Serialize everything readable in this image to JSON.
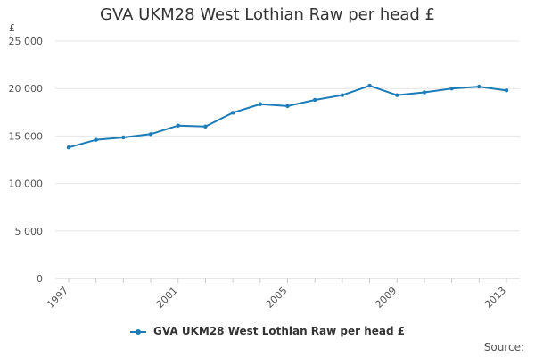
{
  "chart_data": {
    "type": "line",
    "title": "GVA UKM28 West Lothian Raw per head £",
    "ylabel": "£",
    "xlabel": "",
    "x": [
      1997,
      1998,
      1999,
      2000,
      2001,
      2002,
      2003,
      2004,
      2005,
      2006,
      2007,
      2008,
      2009,
      2010,
      2011,
      2012,
      2013
    ],
    "x_tick_labels": [
      "1997",
      "2001",
      "2005",
      "2009",
      "2013"
    ],
    "x_tick_values": [
      1997,
      2001,
      2005,
      2009,
      2013
    ],
    "y_tick_labels": [
      "0",
      "5 000",
      "10 000",
      "15 000",
      "20 000",
      "25 000"
    ],
    "y_tick_values": [
      0,
      5000,
      10000,
      15000,
      20000,
      25000
    ],
    "ylim": [
      0,
      25000
    ],
    "grid": true,
    "legend": "bottom",
    "series": [
      {
        "name": "GVA UKM28 West Lothian Raw per head £",
        "color": "#1c7cb8",
        "values": [
          13800,
          14600,
          14850,
          15200,
          16100,
          16000,
          17450,
          18350,
          18150,
          18800,
          19300,
          20300,
          19300,
          19600,
          20000,
          20200,
          19800
        ]
      }
    ],
    "source_label": "Source:"
  }
}
